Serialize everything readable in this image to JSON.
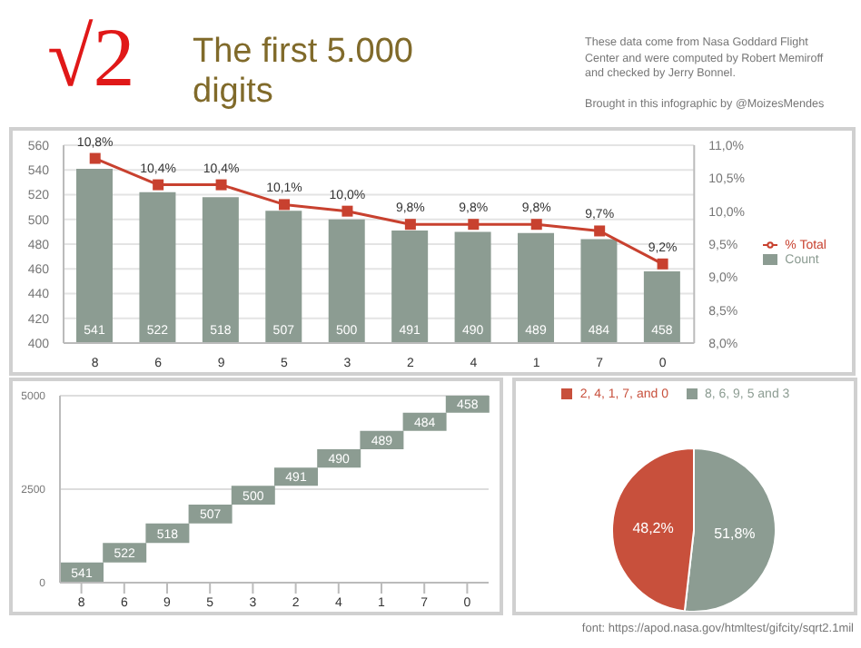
{
  "chart_data": [
    {
      "type": "bar",
      "title": "The first 5.000 digits",
      "annotations": [
        "√2",
        "These data come from Nasa Goddard Flight Center and were computed by Robert Memiroff and checked by Jerry Bonnel.",
        "Brought in this infographic by @MoizesMendes"
      ],
      "categories": [
        "8",
        "6",
        "9",
        "5",
        "3",
        "2",
        "4",
        "1",
        "7",
        "0"
      ],
      "series": [
        {
          "name": "Count",
          "type": "bar",
          "color": "#8c9c92",
          "values": [
            541,
            522,
            518,
            507,
            500,
            491,
            490,
            489,
            484,
            458
          ],
          "value_labels": [
            "541",
            "522",
            "518",
            "507",
            "500",
            "491",
            "490",
            "489",
            "484",
            "458"
          ]
        },
        {
          "name": "% Total",
          "type": "line",
          "axis": "y2",
          "color": "#c8412f",
          "values": [
            10.8,
            10.4,
            10.4,
            10.1,
            10.0,
            9.8,
            9.8,
            9.8,
            9.7,
            9.2
          ],
          "value_labels": [
            "10,8%",
            "10,4%",
            "10,4%",
            "10,1%",
            "10,0%",
            "9,8%",
            "9,8%",
            "9,8%",
            "9,7%",
            "9,2%"
          ]
        }
      ],
      "ylim": [
        400,
        560
      ],
      "yticks": [
        400,
        420,
        440,
        460,
        480,
        500,
        520,
        540,
        560
      ],
      "y2lim": [
        8,
        11
      ],
      "y2ticks": [
        {
          "value": 8,
          "label": "8,0%"
        },
        {
          "value": 8.5,
          "label": "8,5%"
        },
        {
          "value": 9,
          "label": "9,0%"
        },
        {
          "value": 9.5,
          "label": "9,5%"
        },
        {
          "value": 10,
          "label": "10,0%"
        },
        {
          "value": 10.5,
          "label": "10,5%"
        },
        {
          "value": 11,
          "label": "11,0%"
        }
      ],
      "grid": "y",
      "legend": "right",
      "marker": "square"
    },
    {
      "type": "bar",
      "categories": [
        "8",
        "6",
        "9",
        "5",
        "3",
        "2",
        "4",
        "1",
        "7",
        "0"
      ],
      "base": [
        0,
        541,
        1063,
        1581,
        2088,
        2588,
        3079,
        3569,
        4058,
        4542
      ],
      "values": [
        541,
        522,
        518,
        507,
        500,
        491,
        490,
        489,
        484,
        458
      ],
      "value_labels": [
        "541",
        "522",
        "518",
        "507",
        "500",
        "491",
        "490",
        "489",
        "484",
        "458"
      ],
      "color": "#8c9c92",
      "ylim": [
        0,
        5000
      ],
      "yticks": [
        0,
        2500,
        5000
      ],
      "grid": "y"
    },
    {
      "type": "pie",
      "categories": [
        "8, 6, 9, 5 and 3",
        "2, 4, 1, 7, and 0"
      ],
      "values": [
        51.8,
        48.2
      ],
      "colors": [
        "#8c9c92",
        "#c8503c"
      ],
      "value_labels": [
        "51,8%",
        "48,2%"
      ],
      "legend": "top",
      "annotations": [
        "font: https://apod.nasa.gov/htmltest/gifcity/sqrt2.1mil"
      ]
    }
  ]
}
